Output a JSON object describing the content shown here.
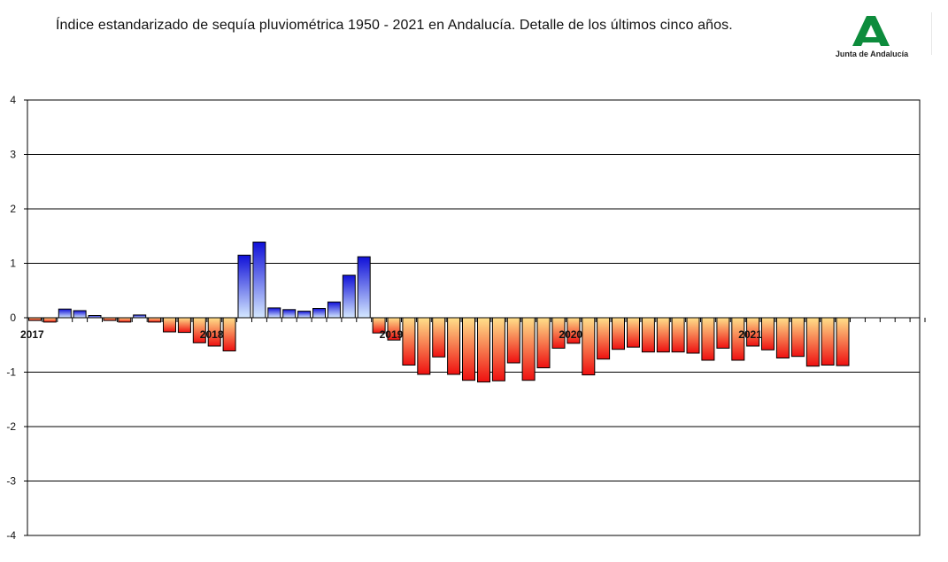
{
  "title": "Índice estandarizado de sequía pluviométrica 1950 - 2021 en Andalucía. Detalle de los últimos cinco años.",
  "logo": {
    "text": "Junta de Andalucía",
    "color": "#0d8c3c"
  },
  "chart_data": {
    "type": "bar",
    "title": "Índice estandarizado de sequía pluviométrica 1950 - 2021 en Andalucía. Detalle de los últimos cinco años.",
    "xlabel": "",
    "ylabel": "",
    "ylim": [
      -4,
      4
    ],
    "yticks": [
      4,
      3,
      2,
      1,
      0,
      -1,
      -2,
      -3,
      -4
    ],
    "year_labels": [
      {
        "label": "2017",
        "month_index": 0
      },
      {
        "label": "2018",
        "month_index": 12
      },
      {
        "label": "2019",
        "month_index": 24
      },
      {
        "label": "2020",
        "month_index": 36
      },
      {
        "label": "2021",
        "month_index": 48
      }
    ],
    "slots": 60,
    "values": [
      -0.05,
      -0.08,
      0.16,
      0.13,
      0.04,
      -0.05,
      -0.08,
      0.05,
      -0.08,
      -0.26,
      -0.27,
      -0.46,
      -0.52,
      -0.61,
      1.15,
      1.39,
      0.18,
      0.15,
      0.12,
      0.17,
      0.29,
      0.78,
      1.12,
      -0.28,
      -0.41,
      -0.87,
      -1.04,
      -0.72,
      -1.04,
      -1.15,
      -1.18,
      -1.16,
      -0.83,
      -1.15,
      -0.92,
      -0.56,
      -0.47,
      -1.05,
      -0.76,
      -0.58,
      -0.54,
      -0.63,
      -0.63,
      -0.63,
      -0.65,
      -0.78,
      -0.56,
      -0.78,
      -0.52,
      -0.59,
      -0.74,
      -0.71,
      -0.89,
      -0.87,
      -0.88
    ],
    "colors": {
      "positive_top": "#1010d8",
      "positive_bottom": "#d4e8ff",
      "negative_top": "#ffe08a",
      "negative_bottom": "#ee1010",
      "grid": "#000000",
      "axis": "#000000"
    },
    "grid": true,
    "legend": "none"
  }
}
